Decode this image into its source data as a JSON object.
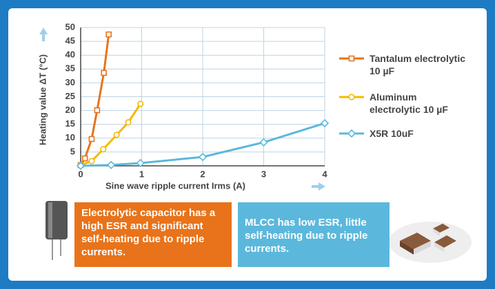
{
  "chart_data": {
    "type": "line",
    "y_label": "Heating value ΔT (°C)",
    "x_label": "Sine wave ripple current Irms (A)",
    "xlim": [
      0,
      4
    ],
    "xticks": [
      0,
      1,
      2,
      3,
      4
    ],
    "ylim": [
      0,
      50
    ],
    "yticks": [
      5,
      10,
      15,
      20,
      25,
      30,
      35,
      40,
      45,
      50
    ],
    "grid": true,
    "series": [
      {
        "name": "Tantalum electrolytic 10 µF",
        "color": "#e8731a",
        "marker": "square",
        "x": [
          0,
          0.07,
          0.18,
          0.27,
          0.38,
          0.46
        ],
        "values": [
          0.3,
          2.7,
          9.7,
          20.1,
          33.6,
          47.5
        ]
      },
      {
        "name": "Aluminum electrolytic 10 µF",
        "color": "#f5b800",
        "marker": "circle",
        "x": [
          0,
          0.18,
          0.37,
          0.59,
          0.78,
          0.98
        ],
        "values": [
          0.3,
          1.7,
          6,
          11.2,
          15.7,
          22.4
        ]
      },
      {
        "name": "X5R 10uF",
        "color": "#5bb8dc",
        "marker": "diamond",
        "x": [
          0,
          0.5,
          0.98,
          2,
          3,
          4
        ],
        "values": [
          0,
          0.3,
          1,
          3.2,
          8.5,
          15.4
        ]
      }
    ],
    "annotations": [
      {
        "text": "Electrolytic capacitor has a high ESR and significant self-heating due to ripple currents.",
        "color": "#e8731a"
      },
      {
        "text": "MLCC has low ESR, little self-heating due to ripple currents.",
        "color": "#5bb8dc"
      }
    ]
  }
}
